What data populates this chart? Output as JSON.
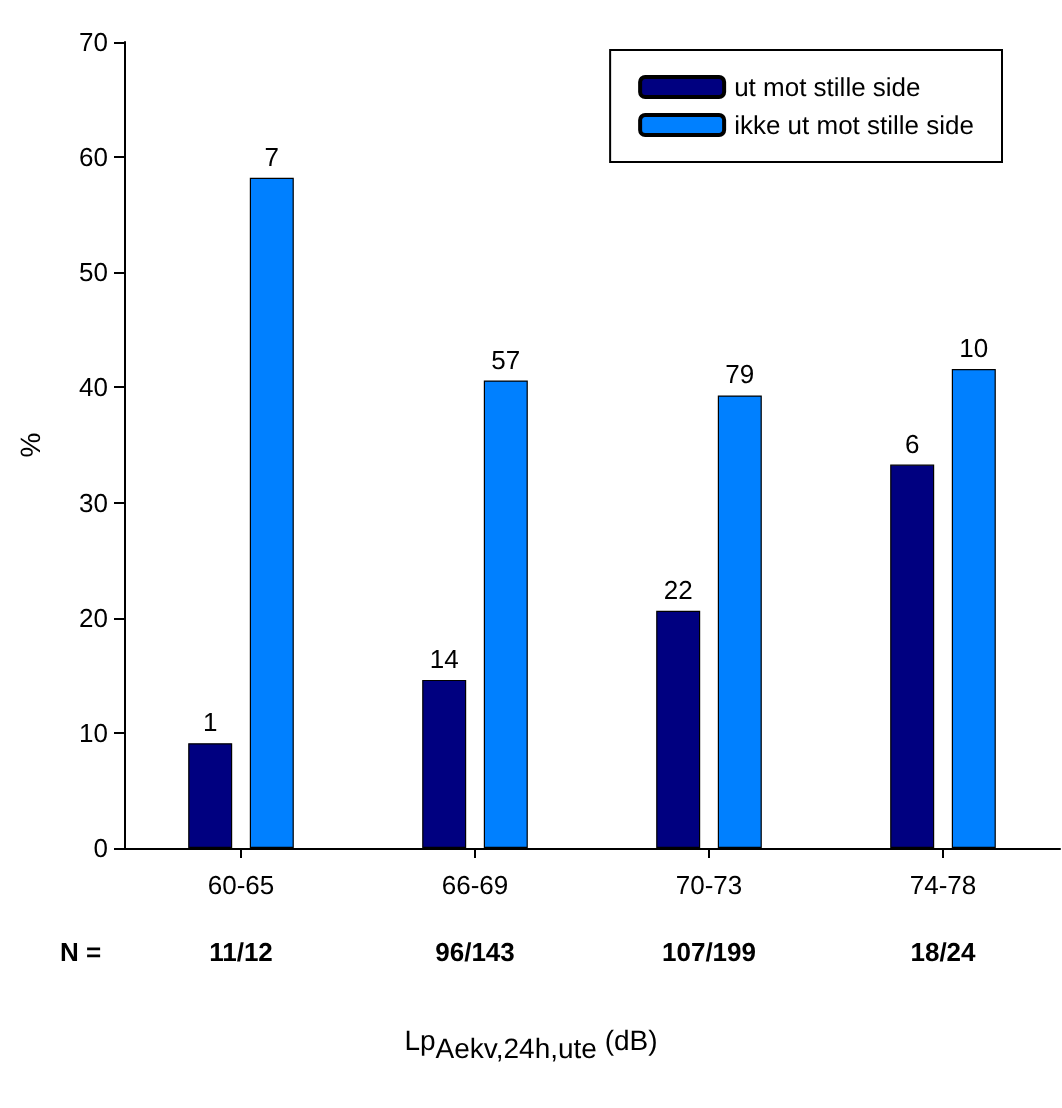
{
  "chart_data": {
    "type": "bar",
    "ylabel": "%",
    "xlabel": "Lp$_{Aekv,24h,ute}$ (dB)",
    "categories": [
      "60-65",
      "66-69",
      "70-73",
      "74-78"
    ],
    "series": [
      {
        "name": "ut mot stille side",
        "color": "#000080",
        "values": [
          9.1,
          14.6,
          20.6,
          33.3
        ]
      },
      {
        "name": "ikke ut mot stille side",
        "color": "#0080ff",
        "values": [
          58.2,
          40.6,
          39.3,
          41.6
        ]
      }
    ],
    "ylim": [
      0,
      70
    ],
    "yticks": [
      0,
      10,
      20,
      30,
      40,
      50,
      60,
      70
    ],
    "grid": false,
    "legend": "top right",
    "annotations": [
      "N =",
      "11/12",
      "96/143",
      "107/199",
      "18/24",
      {
        "text": "1",
        "x": "60-65",
        "y": 9.1
      },
      {
        "text": "14",
        "x": "66-69",
        "y": 14.6
      },
      {
        "text": "22",
        "x": "70-73",
        "y": 20.6
      },
      {
        "text": "6",
        "x": "74-78",
        "y": 33.3
      },
      {
        "text": "7",
        "x": "60-65",
        "y": 58.2
      },
      {
        "text": "57",
        "x": "66-69",
        "y": 40.6
      },
      {
        "text": "79",
        "x": "70-73",
        "y": 39.3
      },
      {
        "text": "10",
        "x": "74-78",
        "y": 41.6
      }
    ]
  }
}
